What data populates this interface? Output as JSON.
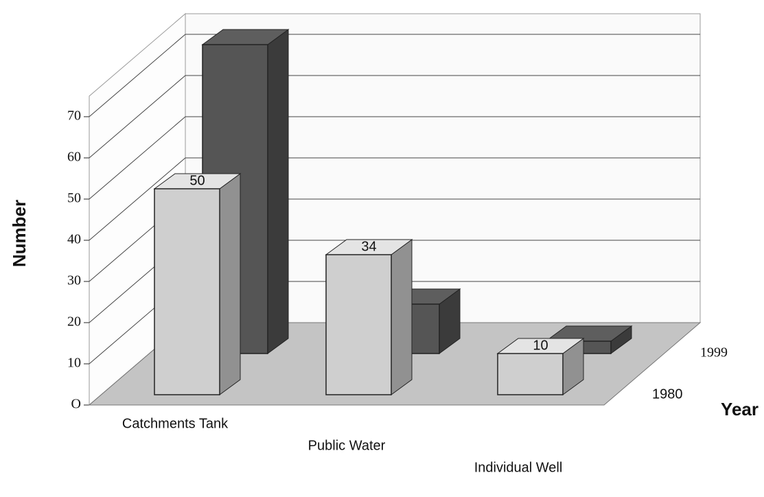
{
  "chart_data": {
    "type": "bar3d",
    "categories": [
      "Catchments Tank",
      "Public Water",
      "Individual Well"
    ],
    "series": [
      {
        "name": "1980",
        "color": "#cfcfcf",
        "values": [
          50,
          34,
          10
        ]
      },
      {
        "name": "1999",
        "color": "#555555",
        "values": [
          75,
          12,
          3
        ]
      }
    ],
    "ylabel": "Number",
    "depth_label": "Year",
    "ylim": [
      0,
      75
    ],
    "yticks": [
      {
        "value": 0,
        "label": "O"
      },
      10,
      20,
      30,
      40,
      50,
      60,
      70
    ],
    "grid": true
  }
}
